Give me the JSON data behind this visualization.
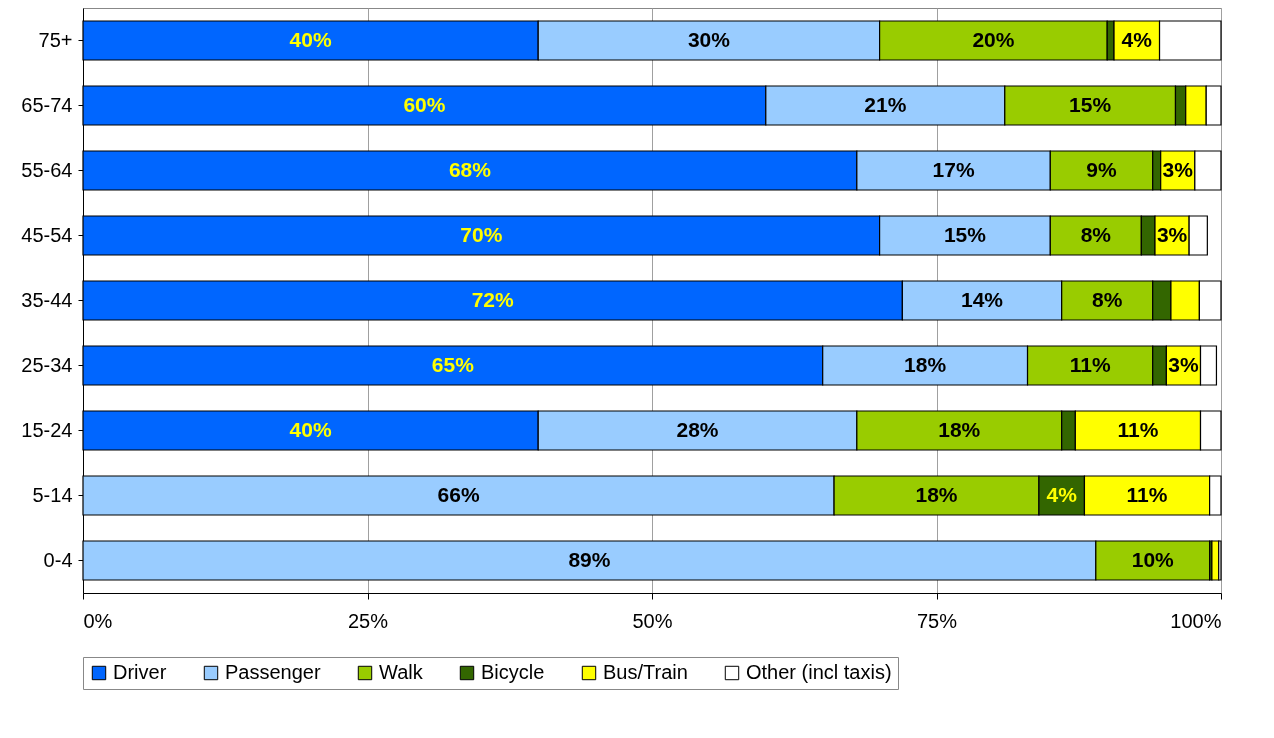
{
  "chart_data": {
    "type": "bar",
    "orientation": "horizontal",
    "stacked": true,
    "categories": [
      "75+",
      "65-74",
      "55-64",
      "45-54",
      "35-44",
      "25-34",
      "15-24",
      "5-14",
      "0-4"
    ],
    "series": [
      {
        "name": "Driver",
        "color": "#0066ff",
        "values": [
          40,
          60,
          68,
          70,
          72,
          65,
          40,
          null,
          null
        ],
        "value_labels": [
          "40%",
          "60%",
          "68%",
          "70%",
          "72%",
          "65%",
          "40%",
          null,
          null
        ]
      },
      {
        "name": "Passenger",
        "color": "#99ccff",
        "values": [
          30,
          21,
          17,
          15,
          14,
          18,
          28,
          66,
          89
        ],
        "value_labels": [
          "30%",
          "21%",
          "17%",
          "15%",
          "14%",
          "18%",
          "28%",
          "66%",
          "89%"
        ]
      },
      {
        "name": "Walk",
        "color": "#99cc00",
        "values": [
          20,
          15,
          9,
          8,
          8,
          11,
          18,
          18,
          10
        ],
        "value_labels": [
          "20%",
          "15%",
          "9%",
          "8%",
          "8%",
          "11%",
          "18%",
          "18%",
          "10%"
        ]
      },
      {
        "name": "Bicycle",
        "color": "#336600",
        "values": [
          0.6,
          0.9,
          0.7,
          1.2,
          1.6,
          1.2,
          1.2,
          4,
          0.2
        ],
        "value_labels": [
          null,
          null,
          null,
          null,
          null,
          null,
          null,
          "4%",
          null
        ]
      },
      {
        "name": "Bus/Train",
        "color": "#ffff00",
        "values": [
          4,
          1.8,
          3,
          3,
          2.5,
          3,
          11,
          11,
          0.6
        ],
        "value_labels": [
          "4%",
          null,
          "3%",
          "3%",
          null,
          "3%",
          "11%",
          "11%",
          null
        ]
      },
      {
        "name": "Other (incl taxis)",
        "color": "#ffffff",
        "values": [
          5.4,
          1.3,
          2.3,
          1.6,
          1.9,
          1.4,
          1.8,
          1.0,
          0.2
        ],
        "value_labels": [
          null,
          null,
          null,
          null,
          null,
          null,
          null,
          null,
          null
        ]
      }
    ],
    "xlim": [
      0,
      100
    ],
    "xticks": [
      {
        "value": 0,
        "label": "0%"
      },
      {
        "value": 25,
        "label": "25%"
      },
      {
        "value": 50,
        "label": "50%"
      },
      {
        "value": 75,
        "label": "75%"
      },
      {
        "value": 100,
        "label": "100%"
      }
    ],
    "grid": "x",
    "legend": "bottom"
  }
}
